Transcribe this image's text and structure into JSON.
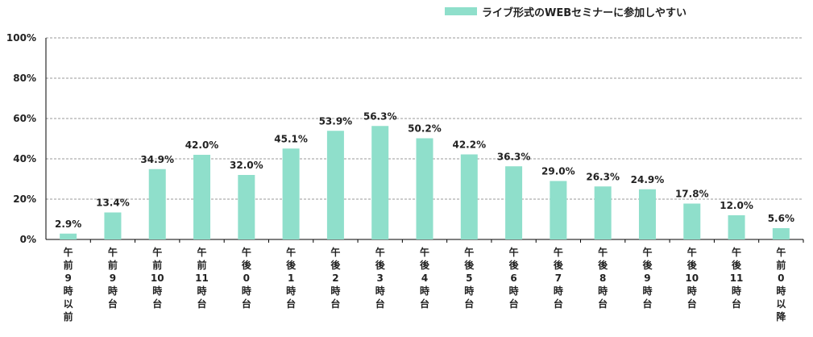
{
  "legend": {
    "label": "ライブ形式のWEBセミナーに参加しやすい",
    "color": "#8fdfcb"
  },
  "chart_data": {
    "type": "bar",
    "title": "",
    "xlabel": "",
    "ylabel": "",
    "ylim": [
      0,
      100
    ],
    "yticks": [
      "0%",
      "20%",
      "40%",
      "60%",
      "80%",
      "100%"
    ],
    "grid": true,
    "legend_position": "top-right",
    "categories": [
      "午前9時以前",
      "午前9時台",
      "午前10時台",
      "午前11時台",
      "午後0時台",
      "午後1時台",
      "午後2時台",
      "午後3時台",
      "午後4時台",
      "午後5時台",
      "午後6時台",
      "午後7時台",
      "午後8時台",
      "午後9時台",
      "午後10時台",
      "午後11時台",
      "午前0時以降"
    ],
    "category_lines": [
      [
        "午",
        "前",
        "9",
        "時",
        "以",
        "前"
      ],
      [
        "午",
        "前",
        "9",
        "時",
        "台"
      ],
      [
        "午",
        "前",
        "10",
        "時",
        "台"
      ],
      [
        "午",
        "前",
        "11",
        "時",
        "台"
      ],
      [
        "午",
        "後",
        "0",
        "時",
        "台"
      ],
      [
        "午",
        "後",
        "1",
        "時",
        "台"
      ],
      [
        "午",
        "後",
        "2",
        "時",
        "台"
      ],
      [
        "午",
        "後",
        "3",
        "時",
        "台"
      ],
      [
        "午",
        "後",
        "4",
        "時",
        "台"
      ],
      [
        "午",
        "後",
        "5",
        "時",
        "台"
      ],
      [
        "午",
        "後",
        "6",
        "時",
        "台"
      ],
      [
        "午",
        "後",
        "7",
        "時",
        "台"
      ],
      [
        "午",
        "後",
        "8",
        "時",
        "台"
      ],
      [
        "午",
        "後",
        "9",
        "時",
        "台"
      ],
      [
        "午",
        "後",
        "10",
        "時",
        "台"
      ],
      [
        "午",
        "後",
        "11",
        "時",
        "台"
      ],
      [
        "午",
        "前",
        "0",
        "時",
        "以",
        "降"
      ]
    ],
    "series": [
      {
        "name": "ライブ形式のWEBセミナーに参加しやすい",
        "color": "#8fdfcb",
        "values": [
          2.9,
          13.4,
          34.9,
          42.0,
          32.0,
          45.1,
          53.9,
          56.3,
          50.2,
          42.2,
          36.3,
          29.0,
          26.3,
          24.9,
          17.8,
          12.0,
          5.6
        ],
        "labels": [
          "2.9%",
          "13.4%",
          "34.9%",
          "42.0%",
          "32.0%",
          "45.1%",
          "53.9%",
          "56.3%",
          "50.2%",
          "42.2%",
          "36.3%",
          "29.0%",
          "26.3%",
          "24.9%",
          "17.8%",
          "12.0%",
          "5.6%"
        ]
      }
    ]
  }
}
